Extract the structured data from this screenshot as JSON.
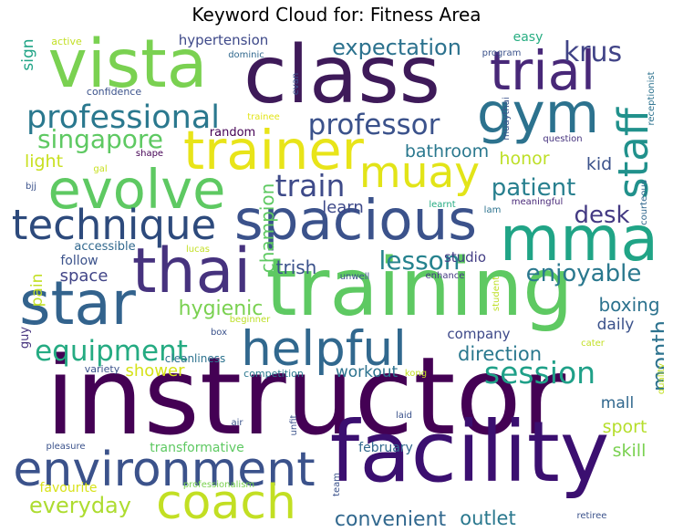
{
  "chart_data": {
    "type": "wordcloud",
    "title": "Keyword Cloud for: Fitness Area",
    "colormap": "viridis",
    "background": "#ffffff",
    "words": [
      {
        "text": "instructor",
        "weight": 1.0,
        "color": "#440154"
      },
      {
        "text": "facility",
        "weight": 0.78,
        "color": "#3b0f70"
      },
      {
        "text": "training",
        "weight": 0.74,
        "color": "#5ec962"
      },
      {
        "text": "class",
        "weight": 0.74,
        "color": "#3e1a59"
      },
      {
        "text": "vista",
        "weight": 0.62,
        "color": "#7ad151"
      },
      {
        "text": "spacious",
        "weight": 0.52,
        "color": "#3b528b"
      },
      {
        "text": "mma",
        "weight": 0.58,
        "color": "#20a486"
      },
      {
        "text": "thai",
        "weight": 0.58,
        "color": "#46327e"
      },
      {
        "text": "star",
        "weight": 0.56,
        "color": "#33638d"
      },
      {
        "text": "gym",
        "weight": 0.52,
        "color": "#2c728e"
      },
      {
        "text": "evolve",
        "weight": 0.5,
        "color": "#5ec962"
      },
      {
        "text": "trainer",
        "weight": 0.5,
        "color": "#e8e419"
      },
      {
        "text": "trial",
        "weight": 0.5,
        "color": "#482878"
      },
      {
        "text": "environment",
        "weight": 0.46,
        "color": "#3b528b"
      },
      {
        "text": "helpful",
        "weight": 0.45,
        "color": "#31688e"
      },
      {
        "text": "coach",
        "weight": 0.44,
        "color": "#c2df23"
      },
      {
        "text": "technique",
        "weight": 0.38,
        "color": "#2d4a7c"
      },
      {
        "text": "muay",
        "weight": 0.4,
        "color": "#e2e418"
      },
      {
        "text": "staff",
        "weight": 0.38,
        "color": "#21918c"
      },
      {
        "text": "professional",
        "weight": 0.3,
        "color": "#2a788e"
      },
      {
        "text": "professor",
        "weight": 0.26,
        "color": "#3b528b"
      },
      {
        "text": "singapore",
        "weight": 0.24,
        "color": "#5ec962"
      },
      {
        "text": "session",
        "weight": 0.28,
        "color": "#1fa088"
      },
      {
        "text": "equipment",
        "weight": 0.26,
        "color": "#25ab82"
      },
      {
        "text": "train",
        "weight": 0.28,
        "color": "#3e4a89"
      },
      {
        "text": "krus",
        "weight": 0.25,
        "color": "#414487"
      },
      {
        "text": "lesson",
        "weight": 0.24,
        "color": "#25828e"
      },
      {
        "text": "enjoyable",
        "weight": 0.22,
        "color": "#2a788e"
      },
      {
        "text": "patient",
        "weight": 0.22,
        "color": "#277f8e"
      },
      {
        "text": "desk",
        "weight": 0.22,
        "color": "#443a83"
      },
      {
        "text": "expectation",
        "weight": 0.2,
        "color": "#2c728e"
      },
      {
        "text": "everyday",
        "weight": 0.2,
        "color": "#addc30"
      },
      {
        "text": "convenient",
        "weight": 0.19,
        "color": "#31688e"
      },
      {
        "text": "month",
        "weight": 0.2,
        "color": "#2c728e"
      },
      {
        "text": "hygienic",
        "weight": 0.19,
        "color": "#7ad151"
      },
      {
        "text": "direction",
        "weight": 0.18,
        "color": "#2a788e"
      },
      {
        "text": "outlet",
        "weight": 0.18,
        "color": "#2a788e"
      },
      {
        "text": "champion",
        "weight": 0.17,
        "color": "#5ec962"
      },
      {
        "text": "trish",
        "weight": 0.17,
        "color": "#3b528b"
      },
      {
        "text": "boxing",
        "weight": 0.17,
        "color": "#2c728e"
      },
      {
        "text": "bathroom",
        "weight": 0.16,
        "color": "#2a788e"
      },
      {
        "text": "honor",
        "weight": 0.16,
        "color": "#bddf26"
      },
      {
        "text": "kid",
        "weight": 0.16,
        "color": "#3b528b"
      },
      {
        "text": "light",
        "weight": 0.16,
        "color": "#c8e020"
      },
      {
        "text": "learn",
        "weight": 0.15,
        "color": "#3e4989"
      },
      {
        "text": "space",
        "weight": 0.15,
        "color": "#414487"
      },
      {
        "text": "shower",
        "weight": 0.15,
        "color": "#d5e21a"
      },
      {
        "text": "workout",
        "weight": 0.14,
        "color": "#2c728e"
      },
      {
        "text": "sport",
        "weight": 0.16,
        "color": "#b5de2b"
      },
      {
        "text": "skill",
        "weight": 0.16,
        "color": "#7ad151"
      },
      {
        "text": "daily",
        "weight": 0.14,
        "color": "#3b528b"
      },
      {
        "text": "company",
        "weight": 0.13,
        "color": "#3e4989"
      },
      {
        "text": "mall",
        "weight": 0.14,
        "color": "#31688e"
      },
      {
        "text": "studio",
        "weight": 0.13,
        "color": "#433e85"
      },
      {
        "text": "hypertension",
        "weight": 0.13,
        "color": "#3e4989"
      },
      {
        "text": "sign",
        "weight": 0.14,
        "color": "#20a486"
      },
      {
        "text": "pain",
        "weight": 0.14,
        "color": "#c2df23"
      },
      {
        "text": "follow",
        "weight": 0.12,
        "color": "#3b528b"
      },
      {
        "text": "accessible",
        "weight": 0.11,
        "color": "#31688e"
      },
      {
        "text": "random",
        "weight": 0.11,
        "color": "#440154"
      },
      {
        "text": "easy",
        "weight": 0.12,
        "color": "#26ad81"
      },
      {
        "text": "february",
        "weight": 0.12,
        "color": "#31688e"
      },
      {
        "text": "transformative",
        "weight": 0.12,
        "color": "#5ec962"
      },
      {
        "text": "favourite",
        "weight": 0.12,
        "color": "#d8e219"
      },
      {
        "text": "guy",
        "weight": 0.11,
        "color": "#46337e"
      },
      {
        "text": "cleanliness",
        "weight": 0.1,
        "color": "#2c728e"
      },
      {
        "text": "variety",
        "weight": 0.09,
        "color": "#3b528b"
      },
      {
        "text": "competition",
        "weight": 0.09,
        "color": "#2a788e"
      },
      {
        "text": "confidence",
        "weight": 0.09,
        "color": "#3b528b"
      },
      {
        "text": "active",
        "weight": 0.09,
        "color": "#c2df23"
      },
      {
        "text": "dominic",
        "weight": 0.08,
        "color": "#31688e"
      },
      {
        "text": "trainee",
        "weight": 0.08,
        "color": "#e2e418"
      },
      {
        "text": "program",
        "weight": 0.08,
        "color": "#3b528b"
      },
      {
        "text": "evan",
        "weight": 0.07,
        "color": "#3b528b"
      },
      {
        "text": "muaythai",
        "weight": 0.07,
        "color": "#3b528b"
      },
      {
        "text": "receptionist",
        "weight": 0.07,
        "color": "#2c728e"
      },
      {
        "text": "courteous",
        "weight": 0.07,
        "color": "#31688e"
      },
      {
        "text": "question",
        "weight": 0.07,
        "color": "#46337e"
      },
      {
        "text": "shape",
        "weight": 0.07,
        "color": "#440154"
      },
      {
        "text": "gal",
        "weight": 0.07,
        "color": "#c8e020"
      },
      {
        "text": "bjj",
        "weight": 0.07,
        "color": "#3b528b"
      },
      {
        "text": "meaningful",
        "weight": 0.07,
        "color": "#482878"
      },
      {
        "text": "learnt",
        "weight": 0.07,
        "color": "#25ab82"
      },
      {
        "text": "lam",
        "weight": 0.07,
        "color": "#2c728e"
      },
      {
        "text": "lucas",
        "weight": 0.07,
        "color": "#c2df23"
      },
      {
        "text": "unwell",
        "weight": 0.07,
        "color": "#3b528b"
      },
      {
        "text": "enhance",
        "weight": 0.07,
        "color": "#443a83"
      },
      {
        "text": "student",
        "weight": 0.07,
        "color": "#bddf26"
      },
      {
        "text": "beginner",
        "weight": 0.07,
        "color": "#bddf26"
      },
      {
        "text": "box",
        "weight": 0.07,
        "color": "#3b528b"
      },
      {
        "text": "cater",
        "weight": 0.07,
        "color": "#c2df23"
      },
      {
        "text": "quality",
        "weight": 0.07,
        "color": "#c2df23"
      },
      {
        "text": "kong",
        "weight": 0.07,
        "color": "#c2df23"
      },
      {
        "text": "laid",
        "weight": 0.08,
        "color": "#3b528b"
      },
      {
        "text": "air",
        "weight": 0.08,
        "color": "#3b528b"
      },
      {
        "text": "unfit",
        "weight": 0.07,
        "color": "#3b528b"
      },
      {
        "text": "pleasure",
        "weight": 0.08,
        "color": "#3b528b"
      },
      {
        "text": "team",
        "weight": 0.07,
        "color": "#3b528b"
      },
      {
        "text": "professionalism",
        "weight": 0.07,
        "color": "#7ad151"
      },
      {
        "text": "retiree",
        "weight": 0.07,
        "color": "#3b528b"
      }
    ]
  }
}
